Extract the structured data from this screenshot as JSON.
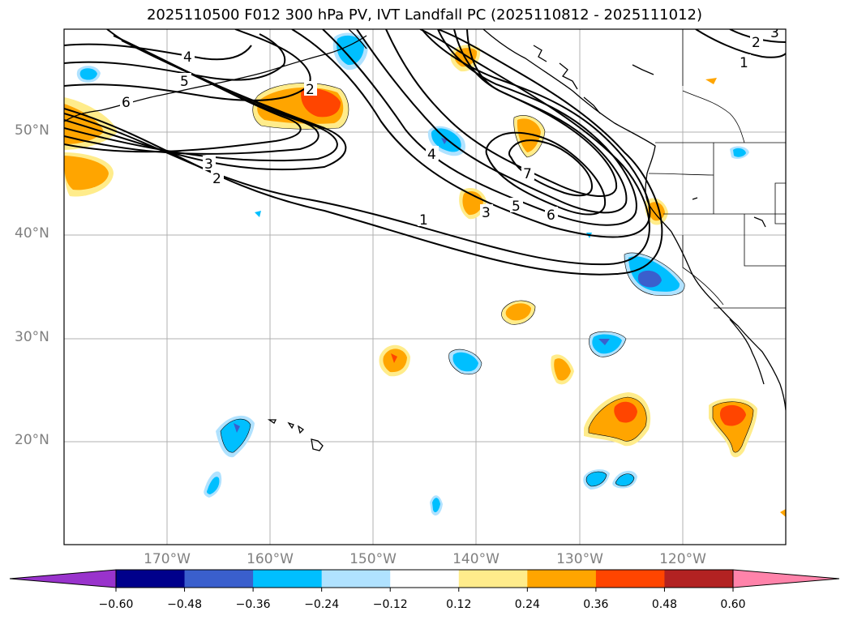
{
  "title": "2025110500 F012 300 hPa PV, IVT Landfall PC (2025110812 - 2025111012)",
  "map": {
    "lat_labels": [
      "50°N",
      "40°N",
      "30°N",
      "20°N"
    ],
    "lon_labels": [
      "170°W",
      "160°W",
      "150°W",
      "140°W",
      "130°W",
      "120°W"
    ],
    "extent": {
      "lon_min": -180,
      "lon_max": -110,
      "lat_min": 10,
      "lat_max": 60
    },
    "grid": true
  },
  "contours": {
    "labels": [
      "4",
      "5",
      "6",
      "2",
      "3",
      "2",
      "4",
      "3",
      "7",
      "5",
      "6",
      "1",
      "1",
      "2",
      "3"
    ]
  },
  "colorbar": {
    "tick_labels": [
      "−0.60",
      "−0.48",
      "−0.36",
      "−0.24",
      "−0.12",
      "0.12",
      "0.24",
      "0.36",
      "0.48",
      "0.60"
    ],
    "bins": [
      {
        "color": "#9933cc"
      },
      {
        "color": "#00008b"
      },
      {
        "color": "#3a5fcd"
      },
      {
        "color": "#00bfff"
      },
      {
        "color": "#b0e2ff"
      },
      {
        "color": "#ffffff"
      },
      {
        "color": "#ffec8b"
      },
      {
        "color": "#ffa500"
      },
      {
        "color": "#ff4500"
      },
      {
        "color": "#b22222"
      },
      {
        "color": "#ff83aa"
      }
    ],
    "extend": "both"
  }
}
